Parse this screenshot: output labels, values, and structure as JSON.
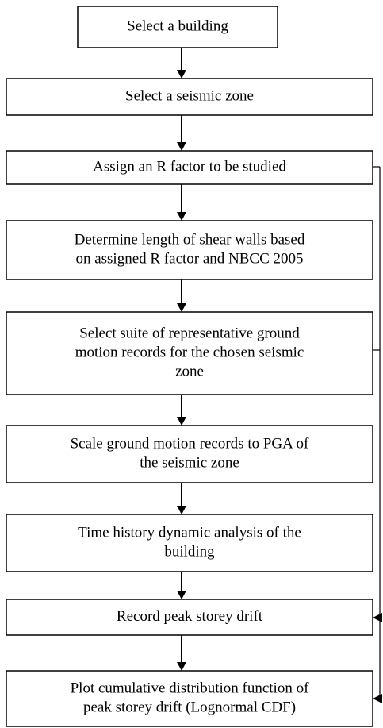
{
  "nodes": [
    {
      "lines": [
        "Select a building"
      ]
    },
    {
      "lines": [
        "Select a seismic zone"
      ]
    },
    {
      "lines": [
        "Assign an R factor to be studied"
      ]
    },
    {
      "lines": [
        "Determine length of shear walls based",
        "on assigned R factor and NBCC 2005"
      ]
    },
    {
      "lines": [
        "Select suite of representative ground",
        "motion records for the chosen seismic",
        "zone"
      ]
    },
    {
      "lines": [
        "Scale ground motion records to PGA of",
        "the seismic zone"
      ]
    },
    {
      "lines": [
        "Time history dynamic analysis of the",
        "building"
      ]
    },
    {
      "lines": [
        "Record peak storey drift"
      ]
    },
    {
      "lines": [
        "Plot cumulative distribution function of",
        "peak storey drift (Lognormal CDF)"
      ]
    }
  ]
}
